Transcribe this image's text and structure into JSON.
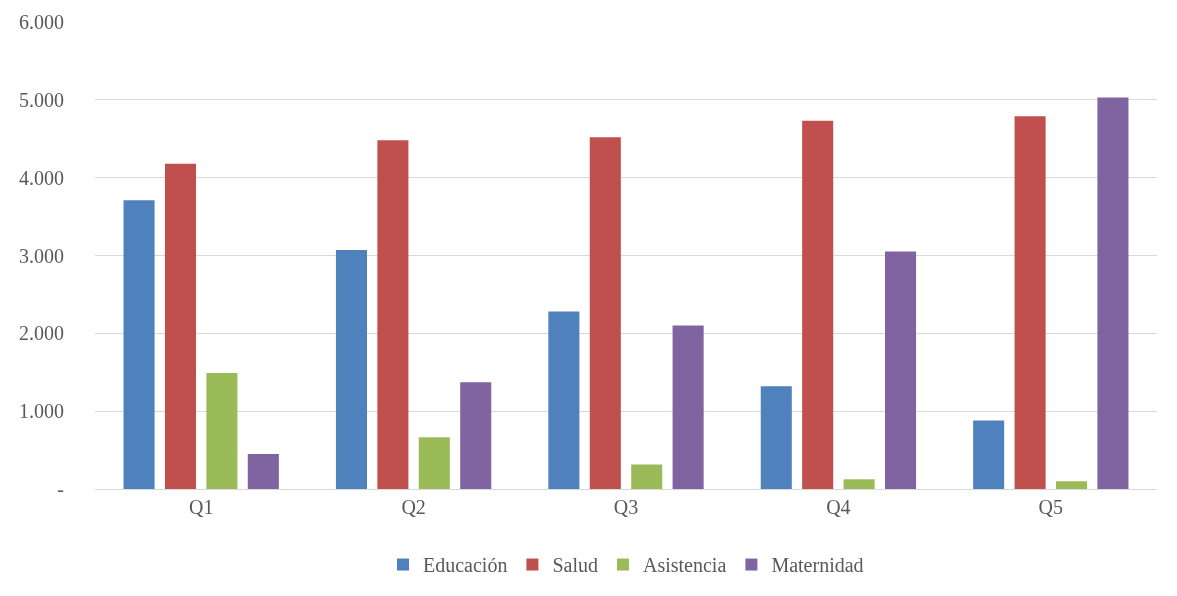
{
  "chart_data": {
    "type": "bar",
    "categories": [
      "Q1",
      "Q2",
      "Q3",
      "Q4",
      "Q5"
    ],
    "series": [
      {
        "name": "Educación",
        "color": "#4f81bd",
        "values": [
          3710,
          3070,
          2280,
          1320,
          880
        ]
      },
      {
        "name": "Salud",
        "color": "#c0504d",
        "values": [
          4180,
          4480,
          4520,
          4730,
          4790
        ]
      },
      {
        "name": "Asistencia",
        "color": "#9bbb59",
        "values": [
          1490,
          665,
          315,
          125,
          100
        ]
      },
      {
        "name": "Maternidad",
        "color": "#8064a2",
        "values": [
          450,
          1370,
          2100,
          3050,
          5030
        ]
      }
    ],
    "ylim": [
      0,
      6000
    ],
    "yticks": [
      {
        "value": 0,
        "label": "-"
      },
      {
        "value": 1000,
        "label": "1.000"
      },
      {
        "value": 2000,
        "label": "2.000"
      },
      {
        "value": 3000,
        "label": "3.000"
      },
      {
        "value": 4000,
        "label": "4.000"
      },
      {
        "value": 5000,
        "label": "5.000"
      },
      {
        "value": 6000,
        "label": "6.000"
      }
    ],
    "grid": "y",
    "legend": "bottom"
  }
}
